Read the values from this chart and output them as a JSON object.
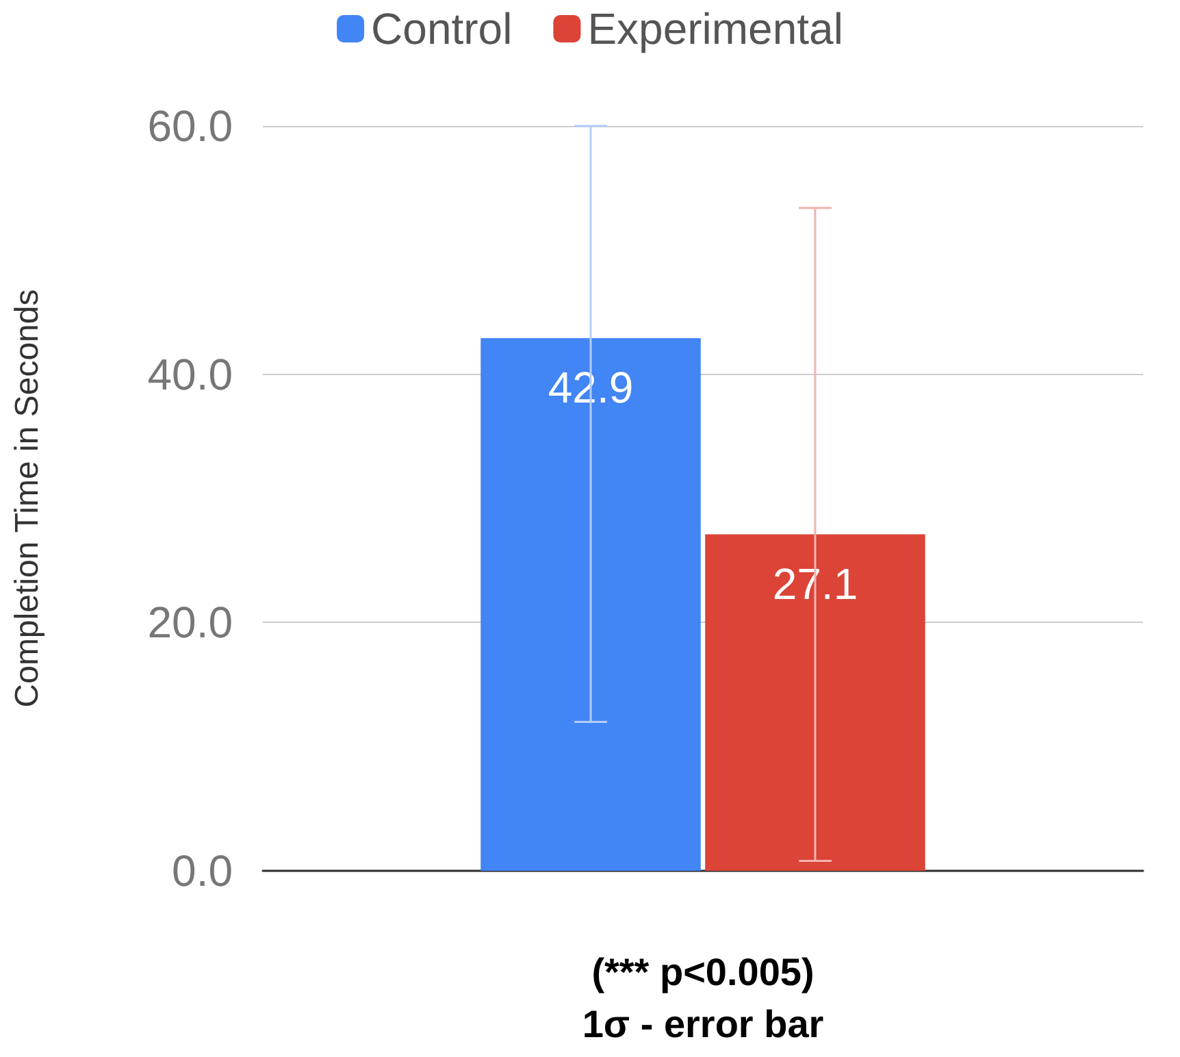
{
  "chart_data": {
    "type": "bar",
    "categories": [
      null
    ],
    "series": [
      {
        "name": "Control",
        "color": "#4285f4",
        "values": [
          42.9
        ],
        "errors": [
          [
            12.0,
            60.0
          ]
        ]
      },
      {
        "name": "Experimental",
        "color": "#db4437",
        "values": [
          27.1
        ],
        "errors": [
          [
            0.8,
            53.4
          ]
        ]
      }
    ],
    "ylabel": "Completion Time in Seconds",
    "xlabel": "(*** p<0.005)\n1σ - error bar",
    "ylim": [
      0,
      60
    ],
    "yticks": [
      {
        "value": 0,
        "label": "0.0"
      },
      {
        "value": 20,
        "label": "20.0"
      },
      {
        "value": 40,
        "label": "40.0"
      },
      {
        "value": 60,
        "label": "60.0"
      }
    ],
    "grid": "y",
    "legend": "top",
    "data_labels": true
  }
}
